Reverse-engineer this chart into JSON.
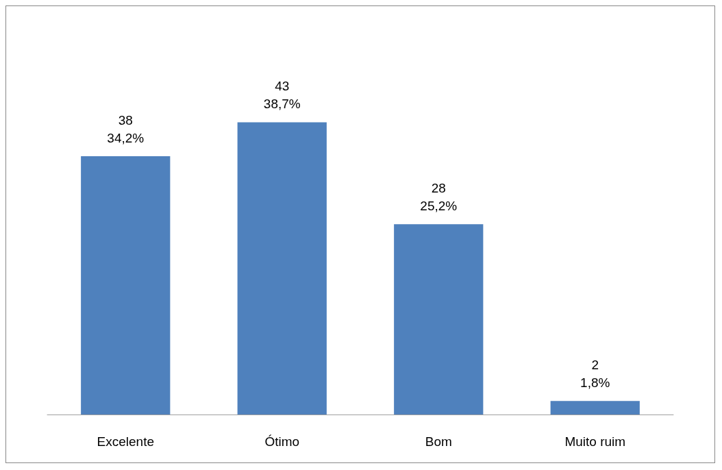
{
  "chart_data": {
    "type": "bar",
    "categories": [
      "Excelente",
      "Ótimo",
      "Bom",
      "Muito ruim"
    ],
    "values": [
      38,
      43,
      28,
      2
    ],
    "color": "#4f81bd",
    "value_labels": [
      "38\n34,2%",
      "43\n38,7%",
      "28\n25,2%",
      "2\n1,8%"
    ]
  }
}
